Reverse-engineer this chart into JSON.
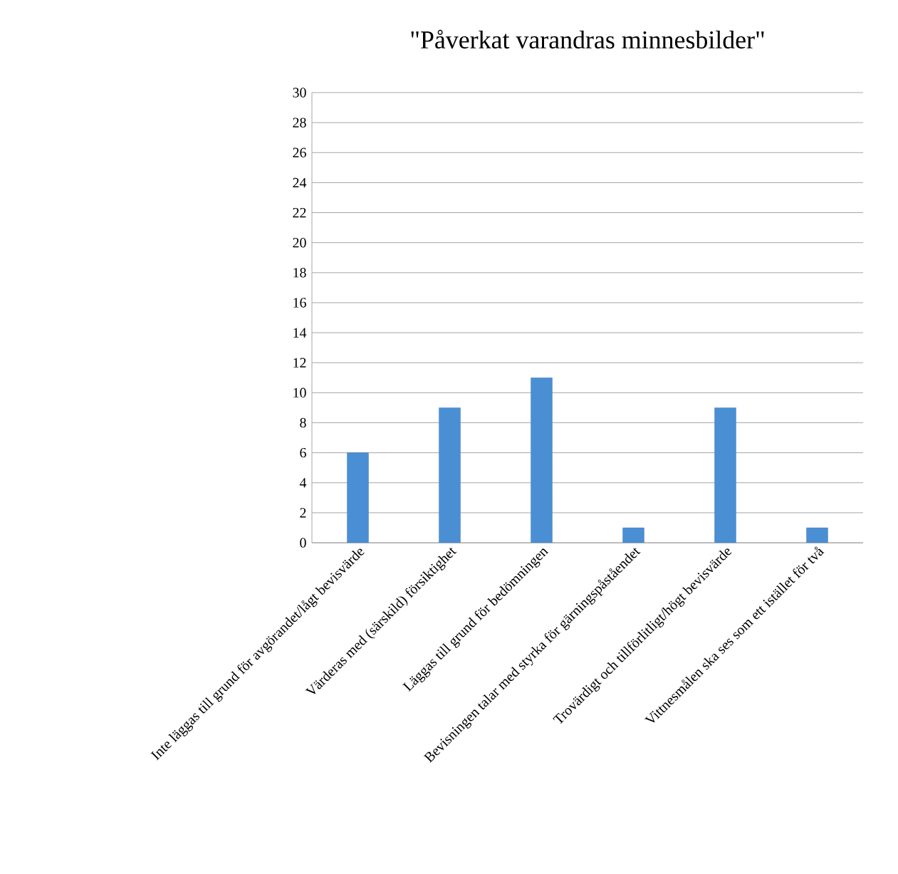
{
  "chart_data": {
    "type": "bar",
    "title": "\"Påverkat varandras minnesbilder\"",
    "categories": [
      "Inte läggas till grund för avgörandet/lågt bevisvärde",
      "Värderas med (särskild) försiktighet",
      "Läggas till grund för bedömningen",
      "Bevisningen talar med styrka för gärningspåståendet",
      "Trovärdigt och tillförlitligt/högt bevisvärde",
      "Vittnesmålen ska ses som ett istället för två"
    ],
    "values": [
      6,
      9,
      11,
      1,
      9,
      1
    ],
    "color": "#4a8fd4",
    "ylim": [
      0,
      30
    ],
    "yticks": [
      0,
      2,
      4,
      6,
      8,
      10,
      12,
      14,
      16,
      18,
      20,
      22,
      24,
      26,
      28,
      30
    ],
    "grid": "y"
  }
}
